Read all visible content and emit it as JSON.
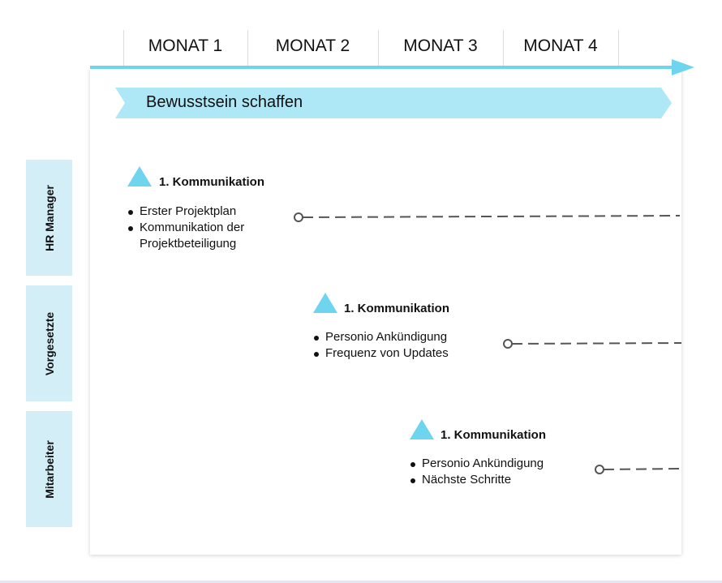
{
  "months": [
    "MONAT 1",
    "MONAT 2",
    "MONAT 3",
    "MONAT 4"
  ],
  "phase": "Bewusstsein schaffen",
  "colors": {
    "accent": "#6fd4ee",
    "banner": "#aee8f7",
    "side": "#d4eef7"
  },
  "lanes": [
    {
      "label": "HR Manager",
      "title": "1. Kommunikation",
      "items": [
        "Erster Projektplan",
        "Kommunikation der Projektbeteiligung"
      ]
    },
    {
      "label": "Vorgesetzte",
      "title": "1. Kommunikation",
      "items": [
        "Personio Ankündigung",
        "Frequenz von Updates"
      ]
    },
    {
      "label": "Mitarbeiter",
      "title": "1. Kommunikation",
      "items": [
        "Personio Ankündigung",
        "Nächste Schritte"
      ]
    }
  ]
}
